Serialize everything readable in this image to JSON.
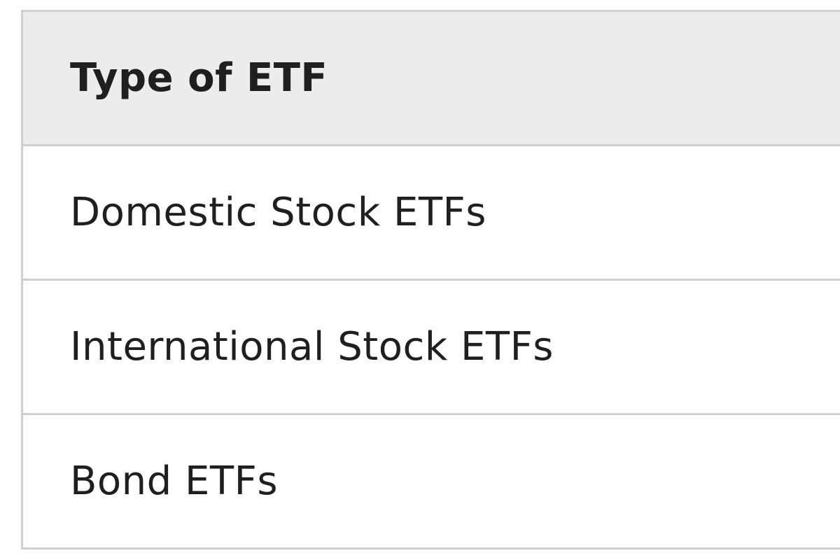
{
  "table": {
    "header": "Type of ETF",
    "rows": [
      "Domestic Stock ETFs",
      "International Stock ETFs",
      "Bond ETFs"
    ]
  }
}
